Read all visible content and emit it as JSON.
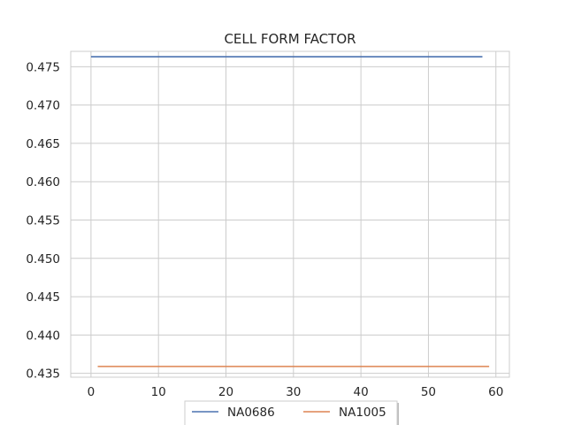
{
  "chart_data": {
    "type": "line",
    "title": "CELL FORM FACTOR",
    "xlabel": "",
    "ylabel": "",
    "xlim": [
      -3,
      62
    ],
    "ylim": [
      0.4345,
      0.477
    ],
    "x_ticks": [
      0,
      10,
      20,
      30,
      40,
      50,
      60
    ],
    "y_ticks": [
      0.435,
      0.44,
      0.445,
      0.45,
      0.455,
      0.46,
      0.465,
      0.47,
      0.475
    ],
    "y_tick_labels": [
      "0.435",
      "0.440",
      "0.445",
      "0.450",
      "0.455",
      "0.460",
      "0.465",
      "0.470",
      "0.475"
    ],
    "grid": true,
    "legend_position": "bottom-center",
    "series": [
      {
        "name": "NA0686",
        "color": "#4c72b0",
        "x": [
          0,
          58
        ],
        "y": [
          0.4763,
          0.4763
        ]
      },
      {
        "name": "NA1005",
        "color": "#dd8452",
        "x": [
          1,
          59
        ],
        "y": [
          0.4359,
          0.4359
        ]
      }
    ]
  }
}
